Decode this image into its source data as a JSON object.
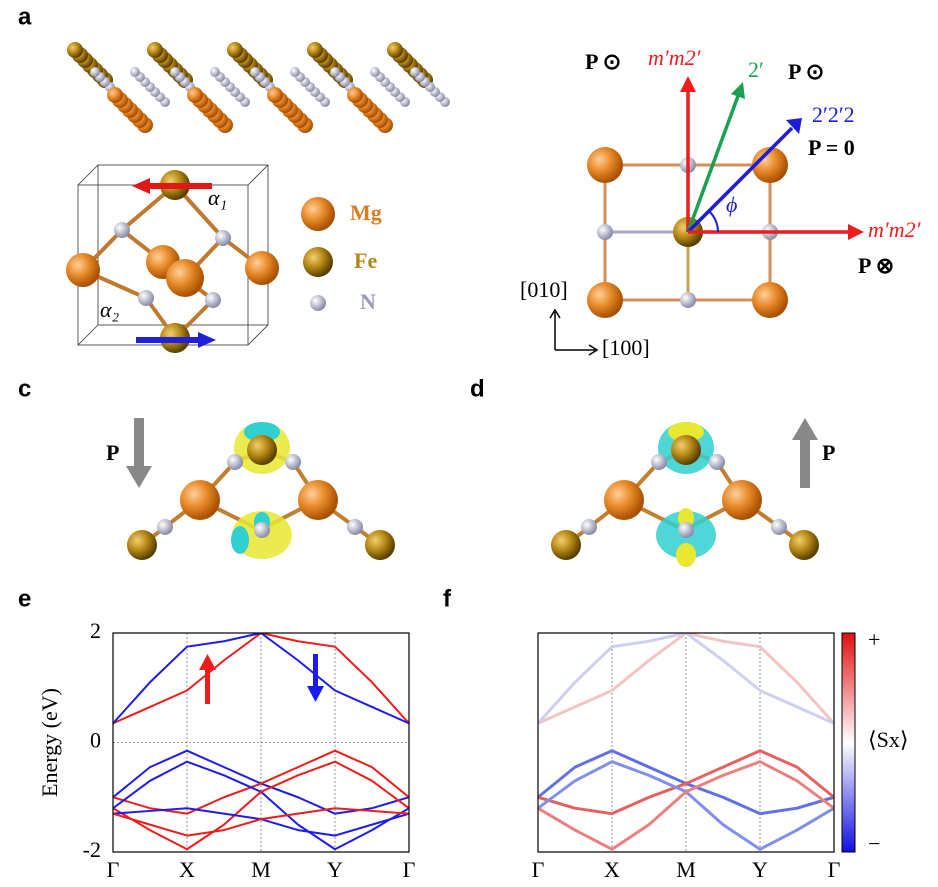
{
  "panel_a": {
    "label": "a",
    "legend": [
      "Mg",
      "Fe",
      "N"
    ],
    "angles": [
      "α₁",
      "α₂"
    ],
    "symmetry": {
      "p_up_left": "P ⊙",
      "mirror_y": "m′m2′",
      "twofold": "2′",
      "p_up_right": "P ⊙",
      "diag": "2′2′2",
      "p_zero": "P = 0",
      "phi": "ϕ",
      "mirror_x": "m′m2′",
      "p_down": "P ⊗"
    },
    "axes": [
      "[010]",
      "[100]"
    ]
  },
  "panel_c": {
    "label": "c",
    "arrow": "P"
  },
  "panel_d": {
    "label": "d",
    "arrow": "P"
  },
  "chart_data": [
    {
      "type": "line",
      "label": "e",
      "ylabel": "Energy (eV)",
      "x": [
        0,
        0.5,
        1,
        1.5,
        2,
        2.5,
        3,
        3.5,
        4
      ],
      "xlim": [
        0,
        4
      ],
      "xticks": [
        {
          "value": 0,
          "label": "Γ"
        },
        {
          "value": 1,
          "label": "X"
        },
        {
          "value": 2,
          "label": "M"
        },
        {
          "value": 3,
          "label": "Y"
        },
        {
          "value": 4,
          "label": "Γ"
        }
      ],
      "ylim": [
        -2,
        2
      ],
      "yticks": [
        -2,
        0,
        2
      ],
      "series": [
        {
          "color": "#ee1c1c",
          "values": [
            0.35,
            0.65,
            0.95,
            1.5,
            2.0,
            1.85,
            1.75,
            1.1,
            0.35
          ]
        },
        {
          "color": "#1c1cee",
          "values": [
            0.35,
            1.1,
            1.75,
            1.85,
            2.0,
            1.5,
            0.95,
            0.65,
            0.35
          ]
        },
        {
          "color": "#1c1cee",
          "values": [
            -1.0,
            -0.45,
            -0.15,
            -0.45,
            -0.75,
            -1.0,
            -1.3,
            -1.2,
            -1.0
          ]
        },
        {
          "color": "#ee1c1c",
          "values": [
            -1.0,
            -1.2,
            -1.3,
            -1.0,
            -0.75,
            -0.45,
            -0.15,
            -0.45,
            -1.0
          ]
        },
        {
          "color": "#1c1cee",
          "values": [
            -1.2,
            -0.7,
            -0.35,
            -0.6,
            -0.9,
            -1.5,
            -1.95,
            -1.6,
            -1.2
          ]
        },
        {
          "color": "#ee1c1c",
          "values": [
            -1.2,
            -1.6,
            -1.95,
            -1.5,
            -0.9,
            -0.6,
            -0.35,
            -0.7,
            -1.2
          ]
        },
        {
          "color": "#1c1cee",
          "values": [
            -1.3,
            -1.25,
            -1.2,
            -1.3,
            -1.4,
            -1.6,
            -1.7,
            -1.5,
            -1.3
          ]
        },
        {
          "color": "#ee1c1c",
          "values": [
            -1.3,
            -1.5,
            -1.7,
            -1.6,
            -1.4,
            -1.3,
            -1.2,
            -1.25,
            -1.3
          ]
        }
      ]
    },
    {
      "type": "line",
      "label": "f",
      "x": [
        0,
        0.5,
        1,
        1.5,
        2,
        2.5,
        3,
        3.5,
        4
      ],
      "xlim": [
        0,
        4
      ],
      "xticks": [
        {
          "value": 0,
          "label": "Γ"
        },
        {
          "value": 1,
          "label": "X"
        },
        {
          "value": 2,
          "label": "M"
        },
        {
          "value": 3,
          "label": "Y"
        },
        {
          "value": 4,
          "label": "Γ"
        }
      ],
      "ylim": [
        -2,
        2
      ],
      "colorbar": {
        "max_label": "+",
        "min_label": "−",
        "label": "⟨Sx⟩"
      },
      "series": [
        {
          "color": "#f2c4c4",
          "values": [
            0.35,
            0.65,
            0.95,
            1.5,
            2.0,
            1.85,
            1.75,
            1.1,
            0.35
          ]
        },
        {
          "color": "#cdd0f0",
          "values": [
            0.35,
            1.1,
            1.75,
            1.85,
            2.0,
            1.5,
            0.95,
            0.65,
            0.35
          ]
        },
        {
          "color": "#6070e6",
          "values": [
            -1.0,
            -0.45,
            -0.15,
            -0.45,
            -0.75,
            -1.0,
            -1.3,
            -1.2,
            -1.0
          ]
        },
        {
          "color": "#e66060",
          "values": [
            -1.0,
            -1.2,
            -1.3,
            -1.0,
            -0.75,
            -0.45,
            -0.15,
            -0.45,
            -1.0
          ]
        },
        {
          "color": "#8090ea",
          "values": [
            -1.2,
            -0.7,
            -0.35,
            -0.6,
            -0.9,
            -1.5,
            -1.95,
            -1.6,
            -1.2
          ]
        },
        {
          "color": "#ea8080",
          "values": [
            -1.2,
            -1.6,
            -1.95,
            -1.5,
            -0.9,
            -0.6,
            -0.35,
            -0.7,
            -1.2
          ]
        }
      ]
    }
  ]
}
